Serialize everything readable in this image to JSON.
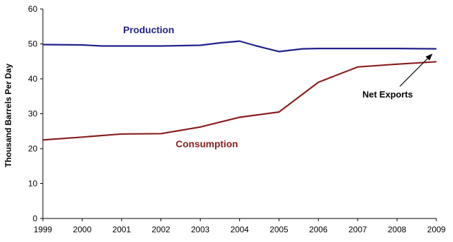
{
  "chart_data": {
    "type": "line",
    "title": "",
    "xlabel": "",
    "ylabel": "Thousand Barrels Per Day",
    "x": [
      "1999",
      "2000",
      "2001",
      "2002",
      "2003",
      "2004",
      "2005",
      "2006",
      "2007",
      "2008",
      "2009"
    ],
    "xlim": [
      1999,
      2009
    ],
    "ylim": [
      0,
      60
    ],
    "yticks": [
      "0",
      "10",
      "20",
      "30",
      "40",
      "50",
      "60"
    ],
    "grid": false,
    "legend": "none",
    "series": [
      {
        "name": "Production",
        "color": "#1f1f8a",
        "points": [
          [
            1999,
            49.8
          ],
          [
            2000,
            49.7
          ],
          [
            2000.5,
            49.4
          ],
          [
            2001,
            49.4
          ],
          [
            2002,
            49.4
          ],
          [
            2003,
            49.6
          ],
          [
            2003.5,
            50.3
          ],
          [
            2004,
            50.8
          ],
          [
            2004.4,
            49.5
          ],
          [
            2005,
            47.8
          ],
          [
            2005.6,
            48.6
          ],
          [
            2006,
            48.7
          ],
          [
            2007,
            48.7
          ],
          [
            2008,
            48.7
          ],
          [
            2009,
            48.6
          ]
        ]
      },
      {
        "name": "Consumption",
        "color": "#8a1c1c",
        "points": [
          [
            1999,
            22.5
          ],
          [
            2000,
            23.3
          ],
          [
            2001,
            24.2
          ],
          [
            2002,
            24.3
          ],
          [
            2003,
            26.2
          ],
          [
            2004,
            29.0
          ],
          [
            2005,
            30.5
          ],
          [
            2006,
            39.0
          ],
          [
            2007,
            43.4
          ],
          [
            2008,
            44.2
          ],
          [
            2009,
            44.9
          ]
        ]
      }
    ],
    "annotations": [
      {
        "text": "Net Exports",
        "arrow_to": [
          2008.9,
          47.2
        ]
      }
    ]
  }
}
